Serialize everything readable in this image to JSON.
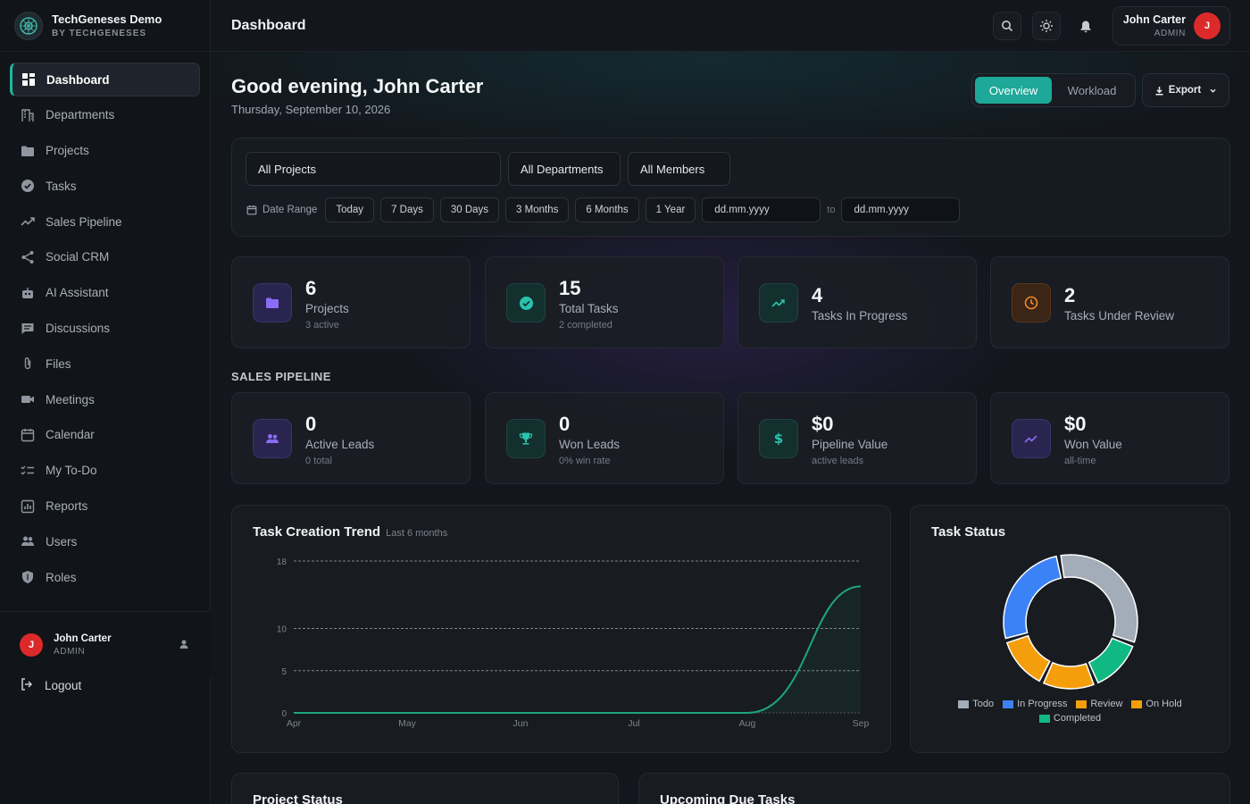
{
  "brand": {
    "title": "TechGeneses Demo",
    "subtitle": "BY TECHGENESES"
  },
  "sidebar": {
    "items": [
      {
        "label": "Dashboard",
        "icon": "grid-icon"
      },
      {
        "label": "Departments",
        "icon": "building-icon"
      },
      {
        "label": "Projects",
        "icon": "folder-icon"
      },
      {
        "label": "Tasks",
        "icon": "check-circle-icon"
      },
      {
        "label": "Sales Pipeline",
        "icon": "trend-icon"
      },
      {
        "label": "Social CRM",
        "icon": "share-icon"
      },
      {
        "label": "AI Assistant",
        "icon": "robot-icon"
      },
      {
        "label": "Discussions",
        "icon": "chat-icon"
      },
      {
        "label": "Files",
        "icon": "paperclip-icon"
      },
      {
        "label": "Meetings",
        "icon": "video-icon"
      },
      {
        "label": "Calendar",
        "icon": "calendar-icon"
      },
      {
        "label": "My To-Do",
        "icon": "checklist-icon"
      },
      {
        "label": "Reports",
        "icon": "report-icon"
      },
      {
        "label": "Users",
        "icon": "users-icon"
      },
      {
        "label": "Roles",
        "icon": "shield-icon"
      }
    ],
    "user": {
      "initial": "J",
      "name": "John Carter",
      "role": "ADMIN"
    },
    "logout": "Logout"
  },
  "topbar": {
    "title": "Dashboard",
    "user": {
      "name": "John Carter",
      "role": "ADMIN",
      "initial": "J"
    }
  },
  "main": {
    "greeting": "Good evening, John Carter",
    "date": "Thursday, September 10, 2026",
    "view_tabs": [
      "Overview",
      "Workload"
    ],
    "export_label": "Export"
  },
  "filters": {
    "projects": "All Projects",
    "departments": "All Departments",
    "members": "All Members",
    "date_range_label": "Date Range",
    "ranges": [
      "Today",
      "7 Days",
      "30 Days",
      "3 Months",
      "6 Months",
      "1 Year"
    ],
    "from_placeholder": "dd.mm.yyyy",
    "to_label": "to",
    "to_placeholder": "dd.mm.yyyy"
  },
  "stats": [
    {
      "value": "6",
      "label": "Projects",
      "sub": "3 active"
    },
    {
      "value": "15",
      "label": "Total Tasks",
      "sub": "2 completed"
    },
    {
      "value": "4",
      "label": "Tasks In Progress",
      "sub": ""
    },
    {
      "value": "2",
      "label": "Tasks Under Review",
      "sub": ""
    }
  ],
  "sales_section": "SALES PIPELINE",
  "sales": [
    {
      "value": "0",
      "label": "Active Leads",
      "sub": "0 total"
    },
    {
      "value": "0",
      "label": "Won Leads",
      "sub": "0% win rate"
    },
    {
      "value": "$0",
      "label": "Pipeline Value",
      "sub": "active leads"
    },
    {
      "value": "$0",
      "label": "Won Value",
      "sub": "all-time"
    }
  ],
  "trend_panel": {
    "title": "Task Creation Trend",
    "subtitle": "Last 6 months"
  },
  "status_panel": {
    "title": "Task Status"
  },
  "bottom_panels": {
    "left": "Project Status",
    "right": "Upcoming Due Tasks"
  },
  "colors": {
    "accent": "#1ea899",
    "avatar": "#dc2a2a"
  },
  "chart_data": [
    {
      "type": "line",
      "title": "Task Creation Trend",
      "categories": [
        "Apr",
        "May",
        "Jun",
        "Jul",
        "Aug",
        "Sep"
      ],
      "values": [
        0,
        0,
        0,
        0,
        0,
        15
      ],
      "yticks": [
        0,
        5,
        10,
        18
      ],
      "ylim": [
        0,
        18
      ],
      "grid": true,
      "color": "#1ea57f"
    },
    {
      "type": "pie",
      "title": "Task Status",
      "donut": true,
      "series": [
        {
          "name": "Todo",
          "value": 5,
          "color": "#a3acb9"
        },
        {
          "name": "In Progress",
          "value": 4,
          "color": "#3b82f6"
        },
        {
          "name": "Review",
          "value": 2,
          "color": "#f59e0b"
        },
        {
          "name": "On Hold",
          "value": 2,
          "color": "#f59e0b"
        },
        {
          "name": "Completed",
          "value": 2,
          "color": "#10b981"
        }
      ],
      "legend": "bottom"
    }
  ]
}
